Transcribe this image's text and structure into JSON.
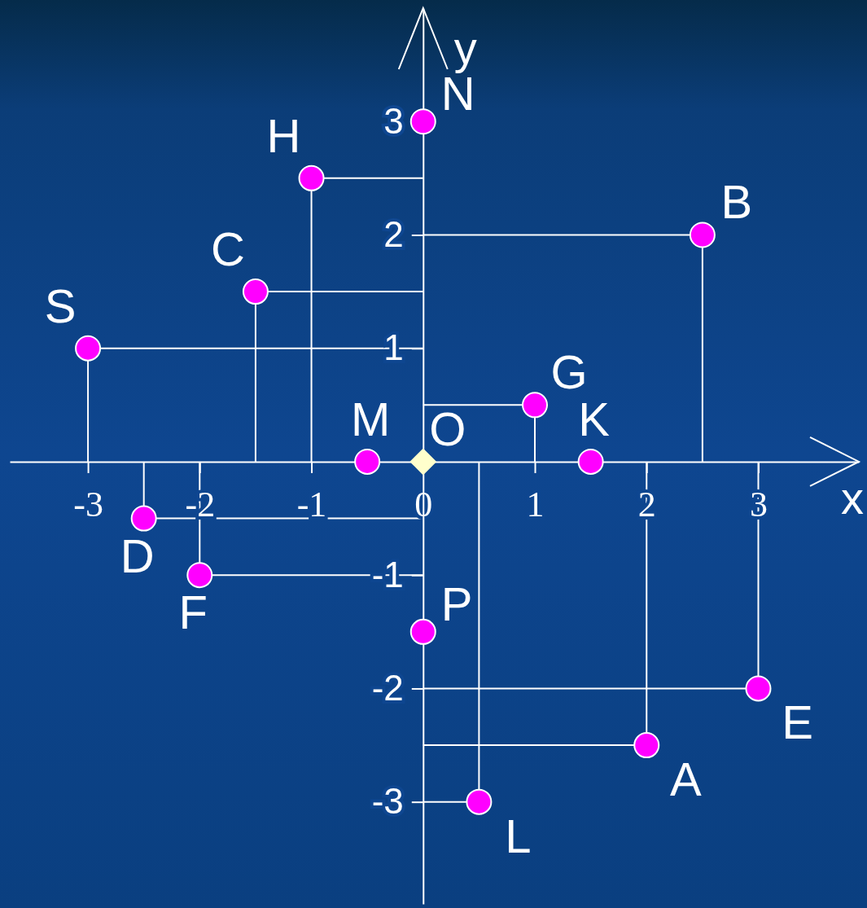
{
  "chart_data": {
    "type": "scatter",
    "xlabel": "x",
    "ylabel": "y",
    "xlim": [
      -3.7,
      3.9
    ],
    "ylim": [
      -3.9,
      4
    ],
    "xticks": [
      -3,
      -2,
      -1,
      0,
      1,
      2,
      3
    ],
    "yticks": [
      -3,
      -2,
      -1,
      1,
      2,
      3
    ],
    "grid": false,
    "series": [
      {
        "color": "#ff00ff",
        "marker": "circle",
        "x": [
          2,
          2.5,
          -1.5,
          -2.5,
          3,
          -2,
          1,
          -1,
          1.5,
          0.5,
          -0.5,
          0,
          0,
          -3
        ],
        "values": [
          -2.5,
          2,
          1.5,
          -0.5,
          -2,
          -1,
          0.5,
          2.5,
          0,
          -3,
          0,
          3,
          -1.5,
          1
        ]
      },
      {
        "color": "#ffffcc",
        "marker": "diamond",
        "x": [
          0
        ],
        "values": [
          0
        ]
      }
    ],
    "annotations": [
      {
        "text": "A",
        "x": 2,
        "y": -2.5
      },
      {
        "text": "B",
        "x": 2.5,
        "y": 2
      },
      {
        "text": "C",
        "x": -1.5,
        "y": 1.5
      },
      {
        "text": "D",
        "x": -2.5,
        "y": -0.5
      },
      {
        "text": "E",
        "x": 3,
        "y": -2
      },
      {
        "text": "F",
        "x": -2,
        "y": -1
      },
      {
        "text": "G",
        "x": 1,
        "y": 0.5
      },
      {
        "text": "H",
        "x": -1,
        "y": 2.5
      },
      {
        "text": "K",
        "x": 1.5,
        "y": 0
      },
      {
        "text": "L",
        "x": 0.5,
        "y": -3
      },
      {
        "text": "M",
        "x": -0.5,
        "y": 0
      },
      {
        "text": "N",
        "x": 0,
        "y": 3
      },
      {
        "text": "P",
        "x": 0,
        "y": -1.5
      },
      {
        "text": "S",
        "x": -3,
        "y": 1
      },
      {
        "text": "O",
        "x": 0,
        "y": 0
      }
    ]
  }
}
